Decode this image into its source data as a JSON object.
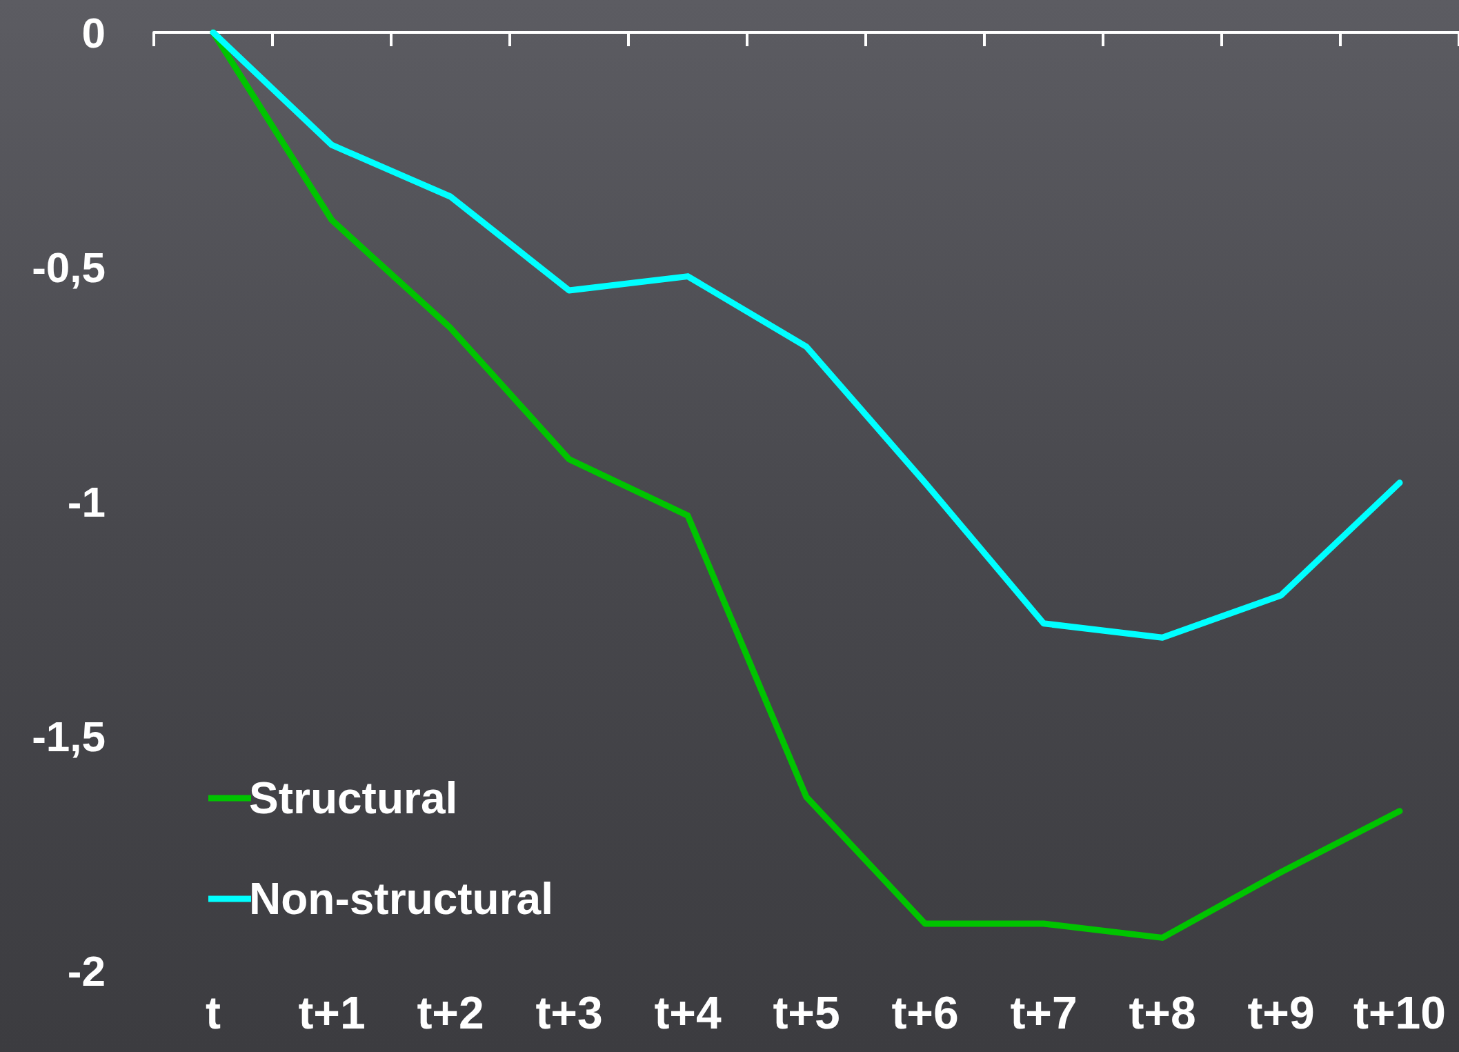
{
  "chart_data": {
    "type": "line",
    "categories": [
      "t",
      "t+1",
      "t+2",
      "t+3",
      "t+4",
      "t+5",
      "t+6",
      "t+7",
      "t+8",
      "t+9",
      "t+10"
    ],
    "series": [
      {
        "name": "Structural",
        "color": "#00c400",
        "values": [
          0,
          -0.4,
          -0.63,
          -0.91,
          -1.03,
          -1.63,
          -1.9,
          -1.9,
          -1.93,
          -1.79,
          -1.66
        ]
      },
      {
        "name": "Non-structural",
        "color": "#00ffff",
        "values": [
          0,
          -0.24,
          -0.35,
          -0.55,
          -0.52,
          -0.67,
          -0.96,
          -1.26,
          -1.29,
          -1.2,
          -0.96
        ]
      }
    ],
    "ylim": [
      -2,
      0
    ],
    "yticks": [
      {
        "value": -2,
        "label": "-2"
      },
      {
        "value": -1.5,
        "label": "-1,5"
      },
      {
        "value": -1,
        "label": "-1"
      },
      {
        "value": -0.5,
        "label": "-0,5"
      },
      {
        "value": 0,
        "label": "0"
      }
    ],
    "grid": false,
    "legend": "bottom left",
    "marker": "none",
    "line_style": "solid"
  }
}
